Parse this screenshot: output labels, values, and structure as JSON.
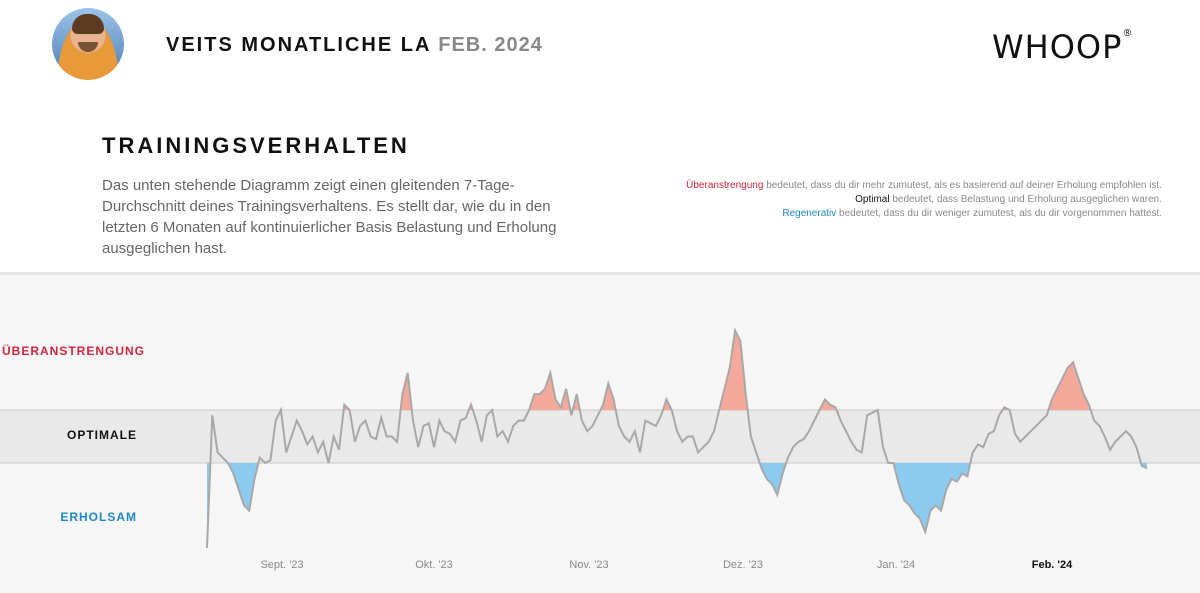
{
  "header": {
    "title": "VEITS MONATLICHE LA",
    "month": "FEB. 2024",
    "logo": "WHOOP",
    "logo_mark": "®"
  },
  "section": {
    "title": "TRAININGSVERHALTEN",
    "description": "Das unten stehende Diagramm zeigt einen gleitenden 7-Tage-Durchschnitt deines Trainingsverhaltens. Es stellt dar, wie du in den letzten 6 Monaten auf kontinuierlicher Basis Belastung und Erholung ausgeglichen hast."
  },
  "legend": {
    "overload_term": "Überanstrengung",
    "overload_text": " bedeutet, dass du dir mehr zumutest, als es basierend auf deiner Erholung empfohlen ist.",
    "optimal_term": "Optimal",
    "optimal_text": " bedeutet, dass Belastung und Erholung ausgeglichen waren.",
    "restorative_term": "Regenerativ",
    "restorative_text": " bedeutet, dass du dir weniger zumutest, als du dir vorgenommen hattest."
  },
  "colors": {
    "overload": "#d0263d",
    "overload_fill": "#f4a99a",
    "optimal": "#111111",
    "restorative": "#1e88c8",
    "restorative_fill": "#8ccaf0",
    "line": "#a8a8a8",
    "band": "#e9e9e9"
  },
  "chart_data": {
    "type": "area",
    "title": "",
    "zones": [
      "ÜBERANSTRENGUNG",
      "OPTIMALE",
      "ERHOLSAM"
    ],
    "x_ticks": [
      "Sept. '23",
      "Okt. '23",
      "Nov. '23",
      "Dez. '23",
      "Jan. '24",
      "Feb. '24"
    ],
    "x_tick_highlight": "Feb. '24",
    "x_range": [
      0,
      174
    ],
    "y_range": [
      -3.5,
      3.5
    ],
    "optimal_band": [
      0,
      1
    ],
    "grid": false,
    "series": [
      {
        "values": [
          -1.6,
          0.9,
          0.2,
          0.1,
          0,
          -0.2,
          -0.5,
          -0.8,
          -0.9,
          -0.3,
          0.1,
          0,
          0.05,
          0.8,
          1.0,
          0.2,
          0.5,
          0.8,
          0.6,
          0.35,
          0.5,
          0.2,
          0.4,
          0,
          0.5,
          0.25,
          1.1,
          1.0,
          0.4,
          0.7,
          0.8,
          0.5,
          0.45,
          0.85,
          0.5,
          0.5,
          0.4,
          1.3,
          1.7,
          0.8,
          0.3,
          0.7,
          0.75,
          0.3,
          0.8,
          0.6,
          0.55,
          0.4,
          0.8,
          0.85,
          1.1,
          0.8,
          0.4,
          0.9,
          1.0,
          0.5,
          0.6,
          0.4,
          0.7,
          0.8,
          0.8,
          1.0,
          1.3,
          1.3,
          1.4,
          1.7,
          1.2,
          1.05,
          1.4,
          0.9,
          1.3,
          0.8,
          0.6,
          0.7,
          0.9,
          1.1,
          1.5,
          1.2,
          0.7,
          0.5,
          0.4,
          0.6,
          0.2,
          0.8,
          0.75,
          0.7,
          0.9,
          1.2,
          1.0,
          0.6,
          0.4,
          0.5,
          0.5,
          0.2,
          0.3,
          0.4,
          0.6,
          1.0,
          1.4,
          1.8,
          2.5,
          2.3,
          1.3,
          0.5,
          0.2,
          -0.1,
          -0.3,
          -0.4,
          -0.6,
          -0.2,
          0.1,
          0.3,
          0.4,
          0.45,
          0.6,
          0.8,
          1.0,
          1.2,
          1.1,
          1.05,
          0.8,
          0.6,
          0.4,
          0.25,
          0.2,
          0.9,
          0.95,
          1.0,
          0.3,
          0,
          0,
          -0.4,
          -0.7,
          -0.8,
          -0.95,
          -1.05,
          -1.3,
          -0.9,
          -0.8,
          -0.9,
          -0.5,
          -0.3,
          -0.35,
          -0.2,
          -0.25,
          0.2,
          0.35,
          0.3,
          0.55,
          0.6,
          0.9,
          1.05,
          1.0,
          0.55,
          0.4,
          0.5,
          0.6,
          0.7,
          0.8,
          0.9,
          1.2,
          1.4,
          1.6,
          1.8,
          1.9,
          1.6,
          1.3,
          1.1,
          0.8,
          0.7,
          0.5,
          0.25,
          0.4,
          0.5,
          0.6,
          0.5,
          0.3,
          -0.05,
          -0.1
        ]
      }
    ]
  }
}
